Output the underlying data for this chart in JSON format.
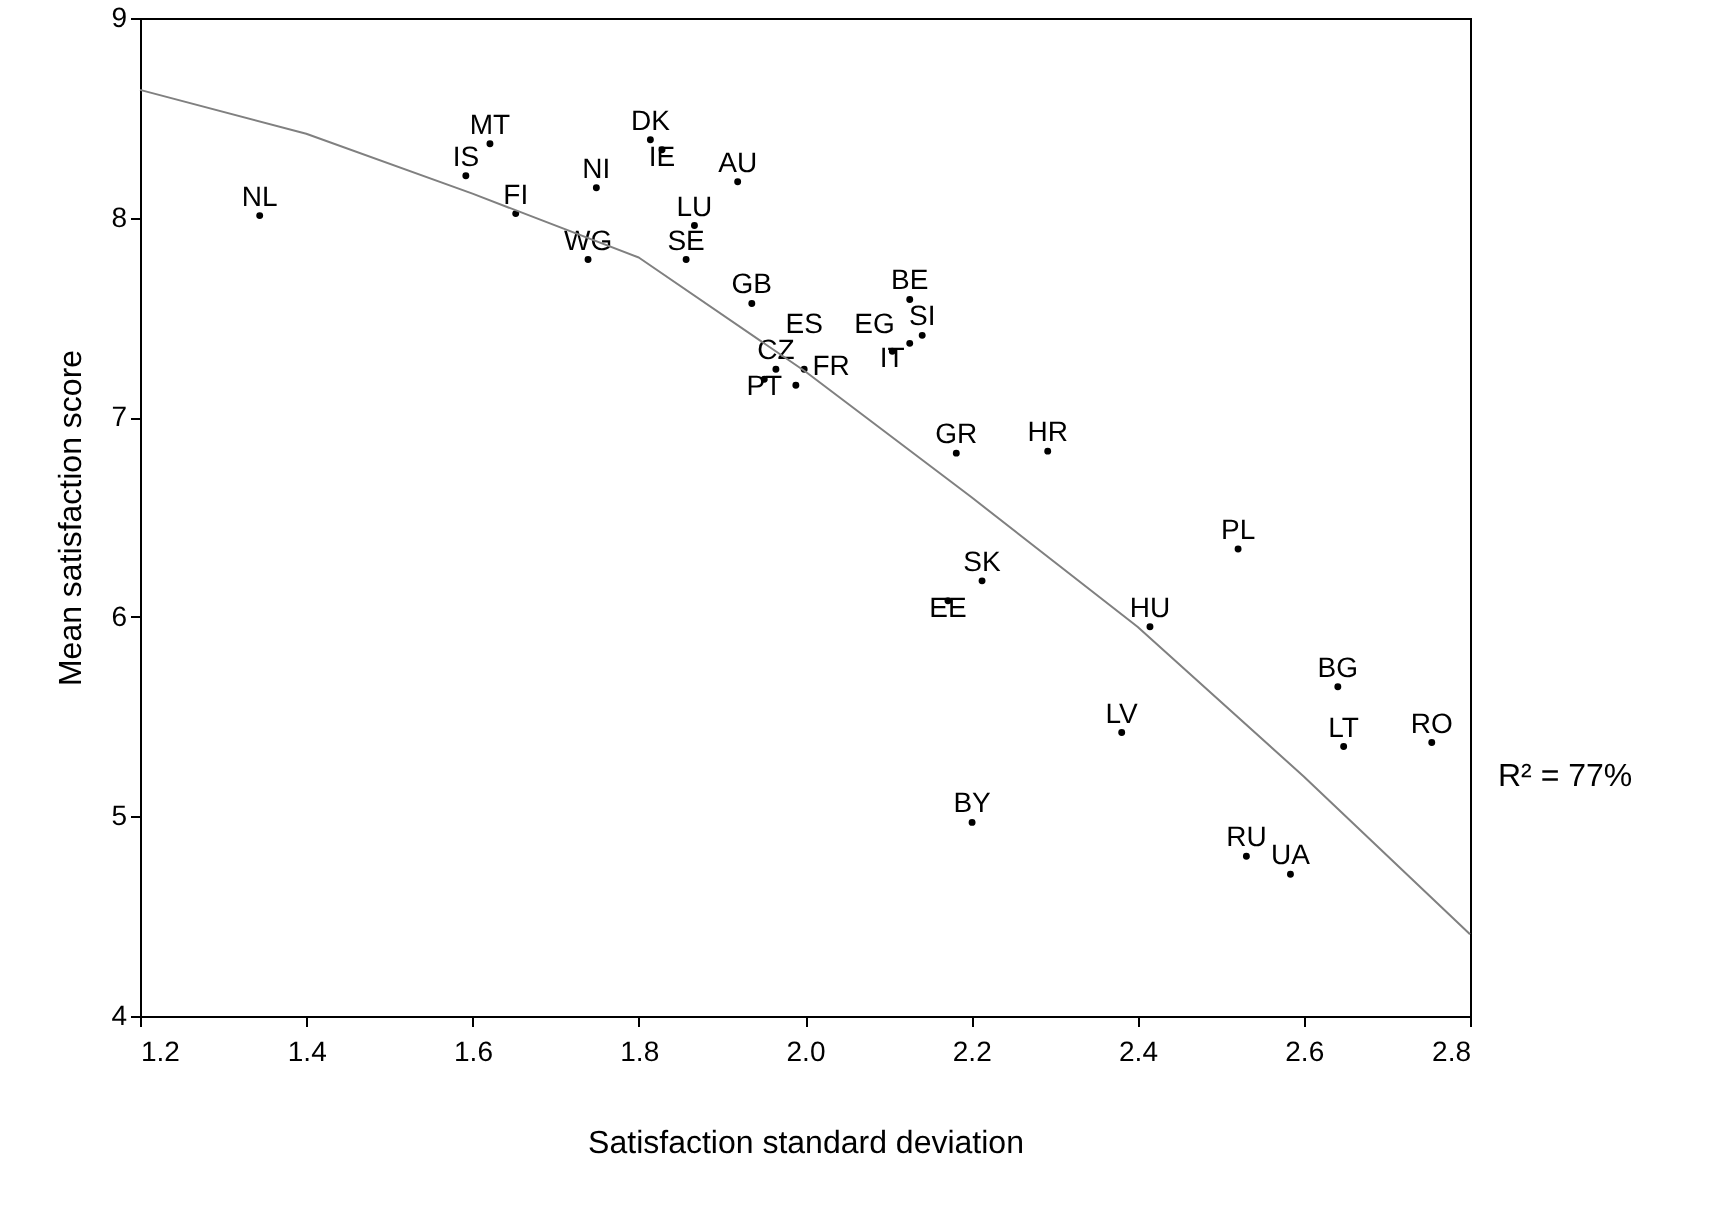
{
  "chart_data": {
    "type": "scatter",
    "xlabel": "Satisfaction standard deviation",
    "ylabel": "Mean satisfaction score",
    "xlim": [
      1.2,
      2.8
    ],
    "ylim": [
      4,
      9
    ],
    "xticks": [
      1.2,
      1.4,
      1.6,
      1.8,
      {
        "value": 2,
        "label": "2.0"
      },
      2.2,
      2.4,
      2.6,
      2.8
    ],
    "yticks": [
      4,
      5,
      6,
      7,
      8,
      9
    ],
    "grid": false,
    "annotations": [
      "R² = 77%"
    ],
    "series": [
      {
        "color": "#000000",
        "marker": "circle",
        "x": [
          1.344,
          1.621,
          1.592,
          1.652,
          1.749,
          1.814,
          1.828,
          1.919,
          1.867,
          1.739,
          1.857,
          1.936,
          2.126,
          2.141,
          2.105,
          2.126,
          1.965,
          1.999,
          1.951,
          1.989,
          2.182,
          2.292,
          2.521,
          2.213,
          2.172,
          2.415,
          2.641,
          2.381,
          2.648,
          2.754,
          2.201,
          2.531,
          2.584
        ],
        "values": [
          8.01,
          8.37,
          8.21,
          8.02,
          8.15,
          8.39,
          8.34,
          8.18,
          7.96,
          7.79,
          7.79,
          7.57,
          7.59,
          7.41,
          7.33,
          7.37,
          7.24,
          7.24,
          7.19,
          7.16,
          6.82,
          6.83,
          6.34,
          6.18,
          6.08,
          5.95,
          5.65,
          5.42,
          5.35,
          5.37,
          4.97,
          4.8,
          4.71
        ],
        "value_labels": [
          "NL",
          "MT",
          "IS",
          "FI",
          "NI",
          "DK",
          "IE",
          "AU",
          "LU",
          "WG",
          "SE",
          "GB",
          "BE",
          "SI",
          "IT",
          "EG",
          "CZ",
          "ES",
          "PT",
          "FR",
          "GR",
          "HR",
          "PL",
          "SK",
          "EE",
          "HU",
          "BG",
          "LV",
          "LT",
          "RO",
          "BY",
          "RU",
          "UA"
        ]
      },
      {
        "type": "line",
        "color": "#808080",
        "x": [
          1.2,
          1.4,
          1.6,
          1.8,
          2.0,
          2.2,
          2.4,
          2.6,
          2.8
        ],
        "values": [
          8.64,
          8.42,
          8.12,
          7.8,
          7.23,
          6.6,
          5.95,
          5.2,
          4.41
        ]
      }
    ]
  }
}
